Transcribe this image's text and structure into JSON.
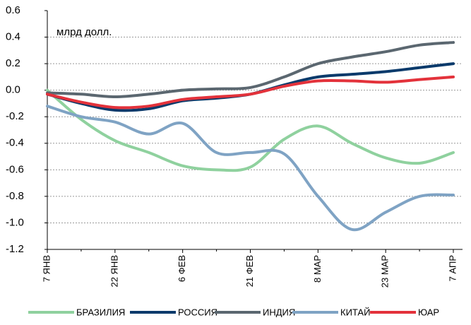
{
  "chart_data": {
    "type": "line",
    "annotation": "млрд долл.",
    "categories": [
      "7 ЯНВ",
      null,
      "22 ЯНВ",
      null,
      "6 ФЕВ",
      null,
      "21 ФЕВ",
      null,
      "8 МАР",
      null,
      "23 МАР",
      null,
      "7 АПР"
    ],
    "series": [
      {
        "name": "БРАЗИЛИЯ",
        "color": "#8fd19e",
        "values": [
          0.0,
          -0.22,
          -0.38,
          -0.47,
          -0.57,
          -0.6,
          -0.58,
          -0.37,
          -0.27,
          -0.4,
          -0.51,
          -0.55,
          -0.47
        ]
      },
      {
        "name": "РОССИЯ",
        "color": "#0a3a6b",
        "values": [
          -0.03,
          -0.1,
          -0.15,
          -0.14,
          -0.08,
          -0.06,
          -0.03,
          0.04,
          0.1,
          0.12,
          0.14,
          0.17,
          0.2
        ]
      },
      {
        "name": "ИНДИЯ",
        "color": "#5b6770",
        "values": [
          -0.02,
          -0.03,
          -0.05,
          -0.03,
          0.0,
          0.01,
          0.02,
          0.1,
          0.2,
          0.25,
          0.29,
          0.34,
          0.36
        ]
      },
      {
        "name": "КИТАЙ",
        "color": "#7fa3c4",
        "values": [
          -0.12,
          -0.2,
          -0.24,
          -0.33,
          -0.25,
          -0.47,
          -0.47,
          -0.48,
          -0.8,
          -1.05,
          -0.92,
          -0.8,
          -0.79
        ]
      },
      {
        "name": "ЮАР",
        "color": "#e3323b",
        "values": [
          -0.03,
          -0.09,
          -0.13,
          -0.12,
          -0.07,
          -0.05,
          -0.03,
          0.03,
          0.07,
          0.07,
          0.06,
          0.08,
          0.1
        ]
      }
    ],
    "ylim": [
      -1.2,
      0.6
    ],
    "yticks": [
      -1.2,
      {
        "value": -1.0,
        "label": "-1.0"
      },
      -0.8,
      -0.6,
      -0.4,
      -0.2,
      {
        "value": 0,
        "label": "0.0"
      },
      0.2,
      0.4,
      0.6
    ],
    "grid": true,
    "legend": "bottom"
  }
}
